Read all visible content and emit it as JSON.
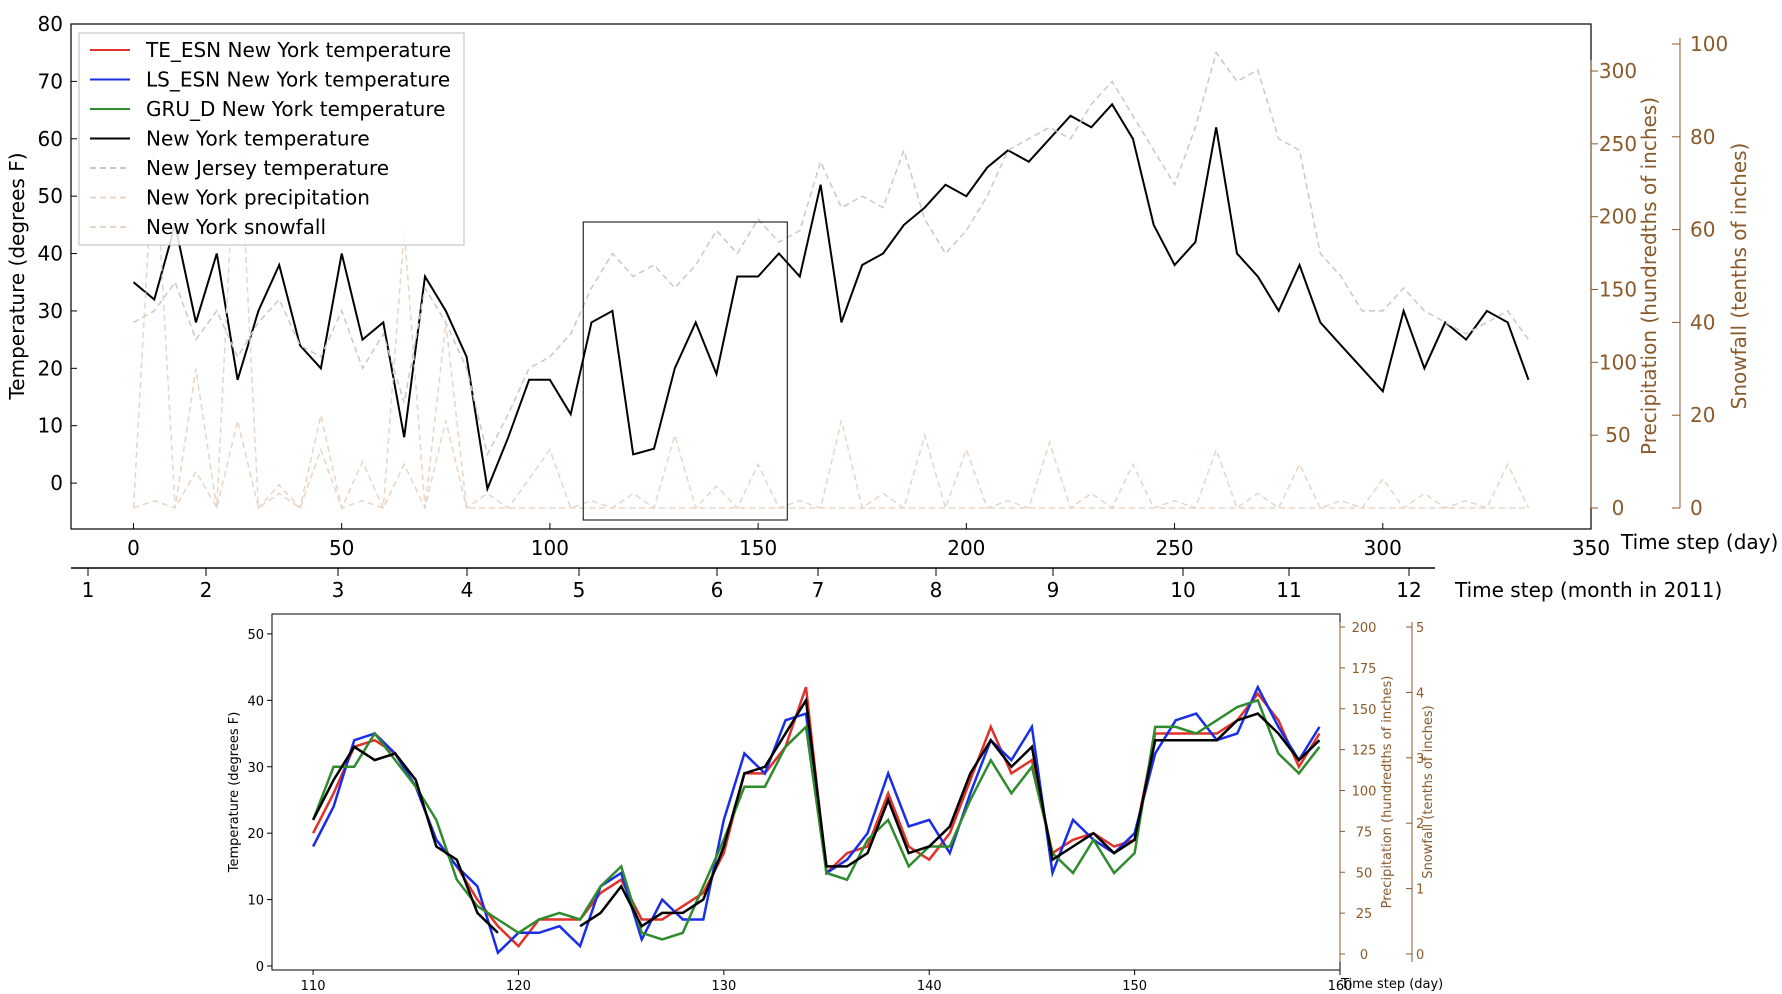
{
  "chart_data": [
    {
      "type": "line",
      "ylabel": "Temperature (degrees F)",
      "ylabel_right1": "Precipitation (hundredths of inches)",
      "ylabel_right2": "Snowfall (tenths of inches)",
      "xlabel": "Time step  (day)",
      "xlabel_months": "Time step  (month in 2011)",
      "xlim": [
        -15,
        350
      ],
      "ylim": [
        -8,
        80
      ],
      "xticks": [
        "0",
        "50",
        "100",
        "150",
        "200",
        "250",
        "300",
        "350"
      ],
      "yticks": [
        "0",
        "10",
        "20",
        "30",
        "40",
        "50",
        "60",
        "70",
        "80"
      ],
      "precip_ticks": [
        "0",
        "50",
        "100",
        "150",
        "200",
        "250",
        "300"
      ],
      "snow_ticks": [
        "0",
        "20",
        "40",
        "60",
        "80",
        "100"
      ],
      "month_ticks": [
        "1",
        "2",
        "3",
        "4",
        "5",
        "6",
        "7",
        "8",
        "9",
        "10",
        "11",
        "12"
      ],
      "legend_placement": "upper-left",
      "zoom_box_x": [
        108,
        157
      ],
      "series": [
        {
          "name": "TE_ESN New York temperature",
          "color": "#e0322b",
          "style": "solid"
        },
        {
          "name": "LS_ESN New York temperature",
          "color": "#1a2ee6",
          "style": "solid"
        },
        {
          "name": "GRU_D New York temperature",
          "color": "#2e8b2e",
          "style": "solid"
        },
        {
          "name": "New York temperature",
          "color": "#000000",
          "style": "solid",
          "x": [
            0,
            5,
            10,
            15,
            20,
            25,
            30,
            35,
            40,
            45,
            50,
            55,
            60,
            65,
            70,
            75,
            80,
            85,
            90,
            95,
            100,
            105,
            110,
            115,
            120,
            125,
            130,
            135,
            140,
            145,
            150,
            155,
            160,
            165,
            170,
            175,
            180,
            185,
            190,
            195,
            200,
            205,
            210,
            215,
            220,
            225,
            230,
            235,
            240,
            245,
            250,
            255,
            260,
            265,
            270,
            275,
            280,
            285,
            290,
            295,
            300,
            305,
            310,
            315,
            320,
            325,
            330,
            335
          ],
          "y": [
            35,
            32,
            45,
            28,
            40,
            18,
            30,
            38,
            24,
            20,
            40,
            25,
            28,
            8,
            36,
            30,
            22,
            -1,
            8,
            18,
            18,
            12,
            28,
            30,
            5,
            6,
            20,
            28,
            19,
            36,
            36,
            40,
            36,
            52,
            28,
            38,
            40,
            45,
            48,
            52,
            50,
            55,
            58,
            56,
            60,
            64,
            62,
            66,
            60,
            45,
            38,
            42,
            62,
            40,
            36,
            30,
            38,
            28,
            24,
            20,
            16,
            30,
            20,
            28,
            25,
            30,
            28,
            18
          ]
        },
        {
          "name": "New Jersey temperature",
          "color": "#c8c8c8",
          "style": "dashed",
          "x": [
            0,
            5,
            10,
            15,
            20,
            25,
            30,
            35,
            40,
            45,
            50,
            55,
            60,
            65,
            70,
            75,
            80,
            85,
            90,
            95,
            100,
            105,
            110,
            115,
            120,
            125,
            130,
            135,
            140,
            145,
            150,
            155,
            160,
            165,
            170,
            175,
            180,
            185,
            190,
            195,
            200,
            205,
            210,
            215,
            220,
            225,
            230,
            235,
            240,
            245,
            250,
            255,
            260,
            265,
            270,
            275,
            280,
            285,
            290,
            295,
            300,
            305,
            310,
            315,
            320,
            325,
            330,
            335
          ],
          "y": [
            28,
            30,
            35,
            25,
            30,
            22,
            28,
            32,
            24,
            22,
            30,
            20,
            26,
            14,
            34,
            28,
            20,
            5,
            12,
            20,
            22,
            26,
            34,
            40,
            36,
            38,
            34,
            38,
            44,
            40,
            46,
            42,
            44,
            56,
            48,
            50,
            48,
            58,
            46,
            40,
            44,
            50,
            58,
            60,
            62,
            60,
            66,
            70,
            64,
            58,
            52,
            62,
            75,
            70,
            72,
            60,
            58,
            40,
            36,
            30,
            30,
            34,
            30,
            28,
            26,
            28,
            30,
            25
          ]
        },
        {
          "name": "New York precipitation",
          "color": "#e8d5c6",
          "style": "dashed",
          "x": [
            0,
            5,
            10,
            15,
            20,
            25,
            30,
            35,
            40,
            45,
            50,
            55,
            60,
            65,
            70,
            75,
            80,
            85,
            90,
            95,
            100,
            105,
            110,
            115,
            120,
            125,
            130,
            135,
            140,
            145,
            150,
            155,
            160,
            165,
            170,
            175,
            180,
            185,
            190,
            195,
            200,
            205,
            210,
            215,
            220,
            225,
            230,
            235,
            240,
            245,
            250,
            255,
            260,
            265,
            270,
            275,
            280,
            285,
            290,
            295,
            300,
            305,
            310,
            315,
            320,
            325,
            330,
            335
          ],
          "y": [
            0,
            5,
            0,
            25,
            0,
            60,
            0,
            10,
            0,
            40,
            0,
            5,
            0,
            30,
            0,
            60,
            0,
            10,
            0,
            20,
            40,
            0,
            5,
            0,
            10,
            0,
            50,
            0,
            15,
            0,
            30,
            0,
            5,
            0,
            60,
            0,
            10,
            0,
            50,
            0,
            40,
            0,
            5,
            0,
            45,
            0,
            10,
            0,
            30,
            0,
            5,
            0,
            40,
            0,
            10,
            0,
            30,
            0,
            5,
            0,
            20,
            0,
            10,
            0,
            5,
            0,
            30,
            0
          ]
        },
        {
          "name": "New York snowfall",
          "color": "#e8d5c6",
          "style": "dashed",
          "x": [
            0,
            5,
            10,
            15,
            20,
            25,
            30,
            35,
            40,
            45,
            50,
            55,
            60,
            65,
            70,
            75,
            80,
            85,
            90,
            95,
            100,
            105,
            110,
            115,
            120,
            125,
            130,
            135,
            140,
            145,
            150,
            155,
            160,
            165,
            170,
            175,
            180,
            185,
            190,
            195,
            200,
            205,
            210,
            215,
            220,
            225,
            230,
            235,
            240,
            245,
            250,
            255,
            260,
            265,
            270,
            275,
            280,
            285,
            290,
            295,
            300,
            305,
            310,
            315,
            320,
            325,
            330,
            335
          ],
          "y": [
            0,
            80,
            0,
            30,
            0,
            90,
            0,
            5,
            0,
            20,
            0,
            10,
            0,
            60,
            0,
            40,
            0,
            0,
            0,
            0,
            0,
            0,
            0,
            0,
            0,
            0,
            0,
            0,
            0,
            0,
            0,
            0,
            0,
            0,
            0,
            0,
            0,
            0,
            0,
            0,
            0,
            0,
            0,
            0,
            0,
            0,
            0,
            0,
            0,
            0,
            0,
            0,
            0,
            0,
            0,
            0,
            0,
            0,
            0,
            0,
            0,
            0,
            0,
            0,
            0,
            0,
            0,
            0
          ]
        }
      ]
    },
    {
      "type": "line",
      "ylabel": "Temperature (degrees F)",
      "ylabel_right1": "Precipitation (hundredths of inches)",
      "ylabel_right2": "Snowfall (tenths of inches)",
      "xlabel": "Time step  (day)",
      "xlim": [
        108,
        160
      ],
      "ylim": [
        0,
        53
      ],
      "xticks": [
        "110",
        "120",
        "130",
        "140",
        "150",
        "160"
      ],
      "yticks": [
        "0",
        "10",
        "20",
        "30",
        "40",
        "50"
      ],
      "precip_ticks": [
        "0",
        "25",
        "50",
        "75",
        "100",
        "125",
        "150",
        "175",
        "200"
      ],
      "snow_ticks": [
        "0",
        "1",
        "2",
        "3",
        "4",
        "5"
      ],
      "x": [
        110,
        111,
        112,
        113,
        114,
        115,
        116,
        117,
        118,
        119,
        120,
        121,
        122,
        123,
        124,
        125,
        126,
        127,
        128,
        129,
        130,
        131,
        132,
        133,
        134,
        135,
        136,
        137,
        138,
        139,
        140,
        141,
        142,
        143,
        144,
        145,
        146,
        147,
        148,
        149,
        150,
        151,
        152,
        153,
        154,
        155,
        156,
        157,
        158,
        159
      ],
      "series": [
        {
          "name": "TE_ESN New York temperature",
          "color": "#e0322b",
          "values": [
            20,
            26,
            33,
            34,
            32,
            27,
            19,
            15,
            10,
            6,
            3,
            7,
            7,
            7,
            11,
            13,
            7,
            7,
            9,
            11,
            17,
            29,
            29,
            33,
            42,
            14,
            17,
            18,
            26,
            18,
            16,
            20,
            28,
            36,
            29,
            31,
            17,
            19,
            20,
            18,
            19,
            35,
            35,
            35,
            35,
            37,
            41,
            37,
            30,
            35
          ]
        },
        {
          "name": "LS_ESN New York temperature",
          "color": "#1a2ee6",
          "values": [
            18,
            24,
            34,
            35,
            32,
            27,
            19,
            15,
            12,
            2,
            5,
            5,
            6,
            3,
            12,
            14,
            4,
            10,
            7,
            7,
            22,
            32,
            29,
            37,
            38,
            14,
            16,
            20,
            29,
            21,
            22,
            17,
            26,
            34,
            31,
            36,
            14,
            22,
            19,
            17,
            20,
            32,
            37,
            38,
            34,
            35,
            42,
            36,
            31,
            36
          ]
        },
        {
          "name": "GRU_D New York temperature",
          "color": "#2e8b2e",
          "values": [
            22,
            30,
            30,
            35,
            31,
            27,
            22,
            13,
            9,
            7,
            5,
            7,
            8,
            7,
            12,
            15,
            5,
            4,
            5,
            12,
            19,
            27,
            27,
            33,
            36,
            14,
            13,
            19,
            22,
            15,
            18,
            18,
            25,
            31,
            26,
            30,
            17,
            14,
            19,
            14,
            17,
            36,
            36,
            35,
            37,
            39,
            40,
            32,
            29,
            33
          ]
        },
        {
          "name": "New York temperature",
          "color": "#000000",
          "values": [
            22,
            28,
            33,
            31,
            32,
            28,
            18,
            16,
            8,
            5,
            null,
            null,
            null,
            6,
            8,
            12,
            6,
            8,
            8,
            10,
            18,
            29,
            30,
            35,
            40,
            15,
            15,
            17,
            25,
            17,
            18,
            21,
            29,
            34,
            30,
            33,
            16,
            18,
            20,
            17,
            19,
            34,
            34,
            34,
            34,
            37,
            38,
            35,
            31,
            34
          ]
        }
      ]
    }
  ],
  "legend": [
    "TE_ESN New York temperature",
    "LS_ESN New York temperature",
    "GRU_D New York temperature",
    "New York temperature",
    "New Jersey temperature",
    "New York precipitation",
    "New York snowfall"
  ],
  "colors": {
    "te_esn": "#e0322b",
    "ls_esn": "#1a2ee6",
    "gru_d": "#2e8b2e",
    "ny": "#000000",
    "nj": "#c8c8c8",
    "precip": "#e8d5c6",
    "brown_axis": "#8a5a2b"
  }
}
